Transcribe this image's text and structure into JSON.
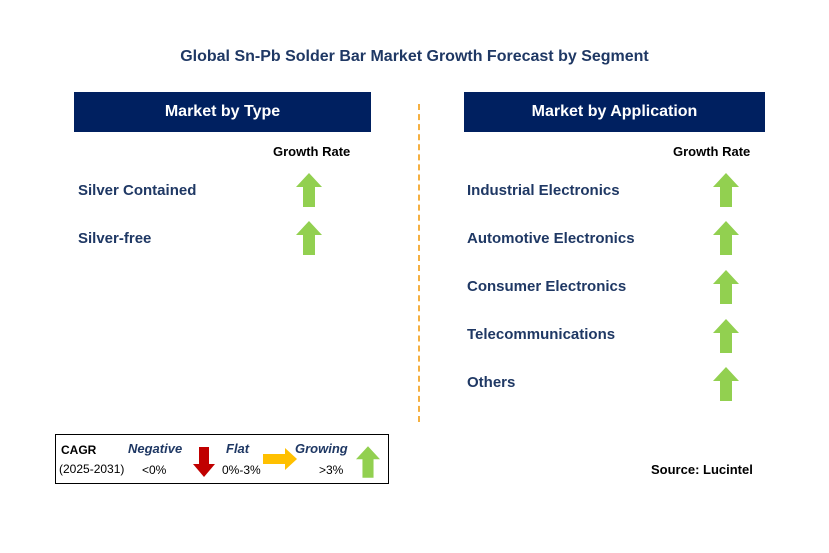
{
  "title": "Global Sn-Pb Solder Bar Market Growth Forecast by Segment",
  "left_panel": {
    "header": "Market by Type",
    "growth_label": "Growth Rate",
    "items": [
      {
        "label": "Silver Contained",
        "trend": "growing"
      },
      {
        "label": "Silver-free",
        "trend": "growing"
      }
    ]
  },
  "right_panel": {
    "header": "Market by Application",
    "growth_label": "Growth Rate",
    "items": [
      {
        "label": "Industrial Electronics",
        "trend": "growing"
      },
      {
        "label": "Automotive Electronics",
        "trend": "growing"
      },
      {
        "label": "Consumer Electronics",
        "trend": "growing"
      },
      {
        "label": "Telecommunications",
        "trend": "growing"
      },
      {
        "label": "Others",
        "trend": "growing"
      }
    ]
  },
  "legend": {
    "cagr": "CAGR",
    "period": "(2025-2031)",
    "negative": {
      "label": "Negative",
      "range": "<0%"
    },
    "flat": {
      "label": "Flat",
      "range": "0%-3%"
    },
    "growing": {
      "label": "Growing",
      "range": ">3%"
    }
  },
  "source": "Source: Lucintel",
  "colors": {
    "header_bg": "#002060",
    "text_navy": "#1f3864",
    "arrow_green": "#92d050",
    "arrow_red": "#c00000",
    "arrow_yellow": "#ffc000",
    "divider": "#f5b041"
  }
}
